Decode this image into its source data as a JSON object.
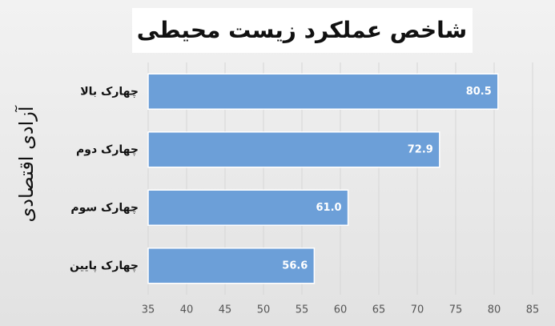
{
  "chart_data": {
    "type": "bar",
    "orientation": "horizontal",
    "title": "شاخص عملکرد زیست محیطی",
    "y_label": "آزادی اقتصادی",
    "categories": [
      "چهارک بالا",
      "چهارک دوم",
      "چهارک سوم",
      "چهارک پایین"
    ],
    "values": [
      80.5,
      72.9,
      61.0,
      56.6
    ],
    "value_labels": [
      "80.5",
      "72.9",
      "61.0",
      "56.6"
    ],
    "color": "#6c9fd8",
    "xlim": [
      35,
      85
    ],
    "xticks": [
      35,
      40,
      45,
      50,
      55,
      60,
      65,
      70,
      75,
      80,
      85
    ],
    "grid": true
  }
}
